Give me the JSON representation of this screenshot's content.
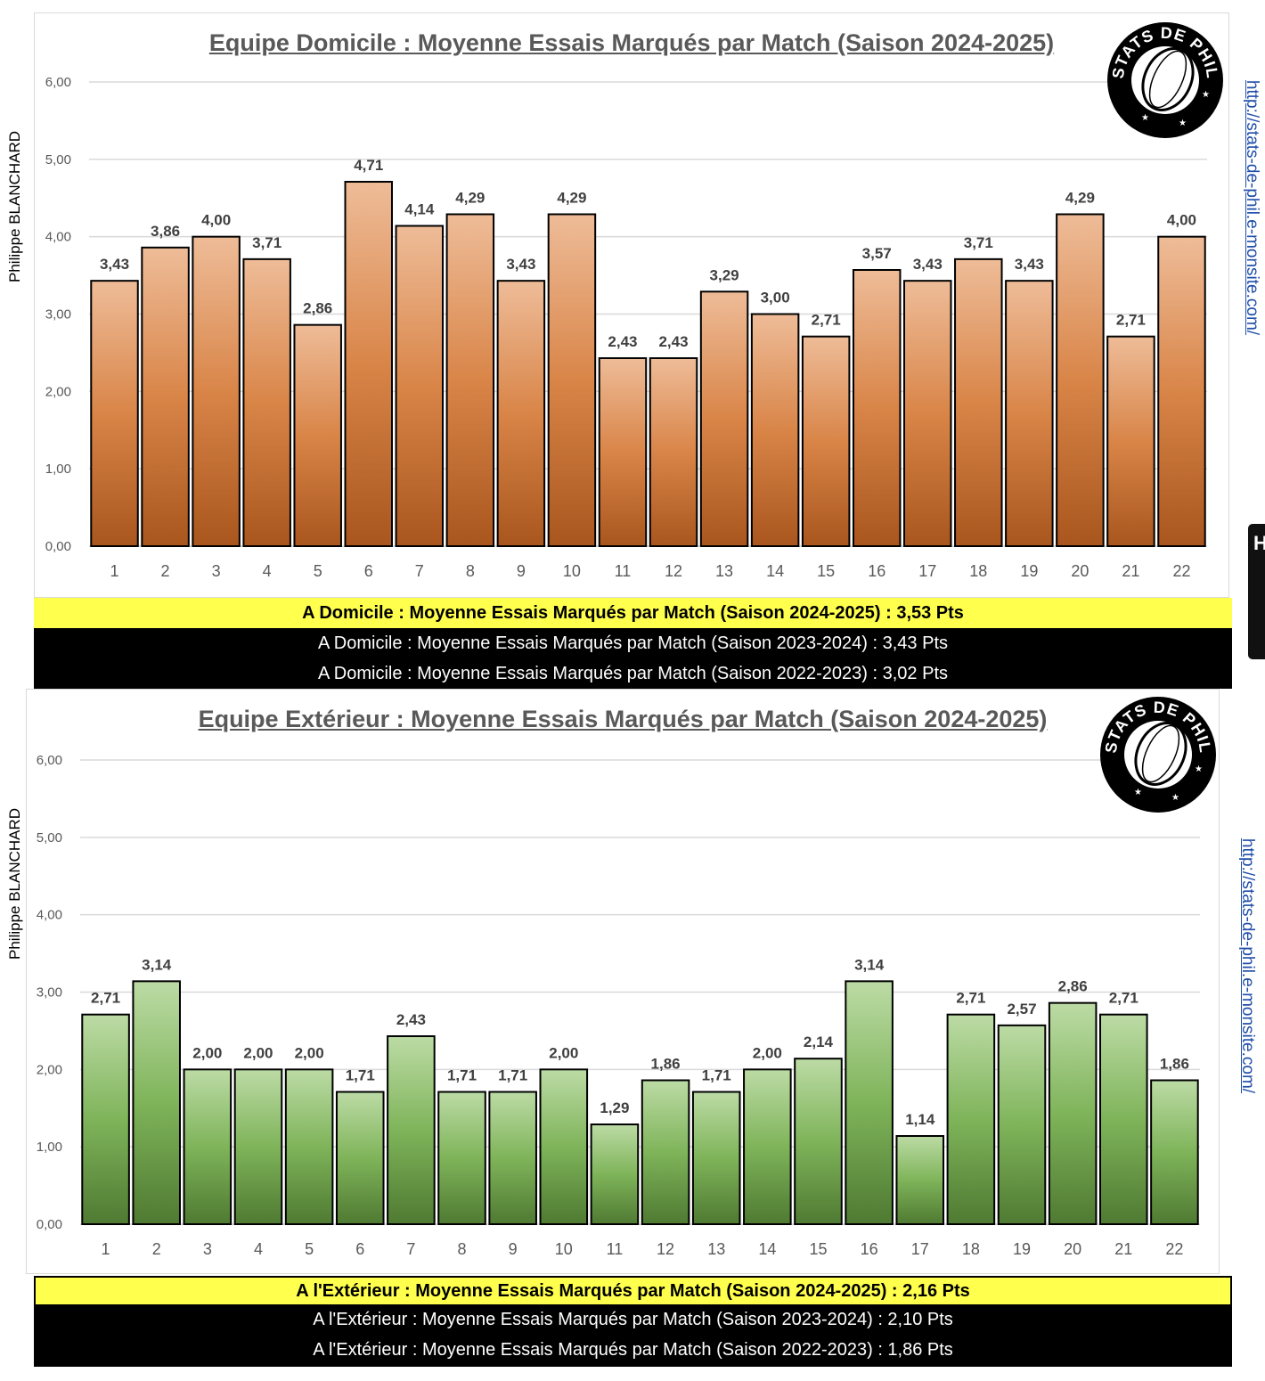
{
  "credit": "Philippe BLANCHARD",
  "url": "http://stats-de-phil.e-monsite.com/",
  "logo_text": "STATS DE PHIL",
  "colors": {
    "home_bar": "#d98548",
    "away_bar": "#7fb45a",
    "highlight": "#ffff4d"
  },
  "edge_tab_text": "H C n p",
  "chart_data": [
    {
      "type": "bar",
      "title": "Equipe Domicile : Moyenne Essais Marqués par Match (Saison 2024-2025)",
      "ylabel": "Philippe BLANCHARD",
      "categories": [
        "1",
        "2",
        "3",
        "4",
        "5",
        "6",
        "7",
        "8",
        "9",
        "10",
        "11",
        "12",
        "13",
        "14",
        "15",
        "16",
        "17",
        "18",
        "19",
        "20",
        "21",
        "22"
      ],
      "values": [
        3.43,
        3.86,
        4.0,
        3.71,
        2.86,
        4.71,
        4.14,
        4.29,
        3.43,
        4.29,
        2.43,
        2.43,
        3.29,
        3.0,
        2.71,
        3.57,
        3.43,
        3.71,
        3.43,
        4.29,
        2.71,
        4.0
      ],
      "value_labels": [
        "3,43",
        "3,86",
        "4,00",
        "3,71",
        "2,86",
        "4,71",
        "4,14",
        "4,29",
        "3,43",
        "4,29",
        "2,43",
        "2,43",
        "3,29",
        "3,00",
        "2,71",
        "3,57",
        "3,43",
        "3,71",
        "3,43",
        "4,29",
        "2,71",
        "4,00"
      ],
      "yticks": [
        "0,00",
        "1,00",
        "2,00",
        "3,00",
        "4,00",
        "5,00",
        "6,00"
      ],
      "ylim": [
        0,
        6
      ],
      "grid": true
    },
    {
      "type": "bar",
      "title": "Equipe Extérieur : Moyenne Essais Marqués par Match (Saison 2024-2025)",
      "ylabel": "Philippe BLANCHARD",
      "categories": [
        "1",
        "2",
        "3",
        "4",
        "5",
        "6",
        "7",
        "8",
        "9",
        "10",
        "11",
        "12",
        "13",
        "14",
        "15",
        "16",
        "17",
        "18",
        "19",
        "20",
        "21",
        "22"
      ],
      "values": [
        2.71,
        3.14,
        2.0,
        2.0,
        2.0,
        1.71,
        2.43,
        1.71,
        1.71,
        2.0,
        1.29,
        1.86,
        1.71,
        2.0,
        2.14,
        3.14,
        1.14,
        2.71,
        2.57,
        2.86,
        2.71,
        1.86
      ],
      "value_labels": [
        "2,71",
        "3,14",
        "2,00",
        "2,00",
        "2,00",
        "1,71",
        "2,43",
        "1,71",
        "1,71",
        "2,00",
        "1,29",
        "1,86",
        "1,71",
        "2,00",
        "2,14",
        "3,14",
        "1,14",
        "2,71",
        "2,57",
        "2,86",
        "2,71",
        "1,86"
      ],
      "yticks": [
        "0,00",
        "1,00",
        "2,00",
        "3,00",
        "4,00",
        "5,00",
        "6,00"
      ],
      "ylim": [
        0,
        6
      ],
      "grid": true
    }
  ],
  "home_summary": {
    "current": "A Domicile : Moyenne Essais Marqués par Match (Saison 2024-2025)  : 3,53 Pts",
    "prev1": "A Domicile : Moyenne Essais Marqués par Match (Saison 2023-2024) : 3,43 Pts",
    "prev2": "A Domicile : Moyenne Essais Marqués par Match (Saison 2022-2023) : 3,02 Pts"
  },
  "away_summary": {
    "current": "A l'Extérieur : Moyenne Essais Marqués par Match (Saison 2024-2025)  : 2,16 Pts",
    "prev1": "A l'Extérieur : Moyenne Essais Marqués par Match (Saison 2023-2024) : 2,10 Pts",
    "prev2": "A l'Extérieur : Moyenne Essais Marqués par Match (Saison 2022-2023) : 1,86 Pts"
  }
}
